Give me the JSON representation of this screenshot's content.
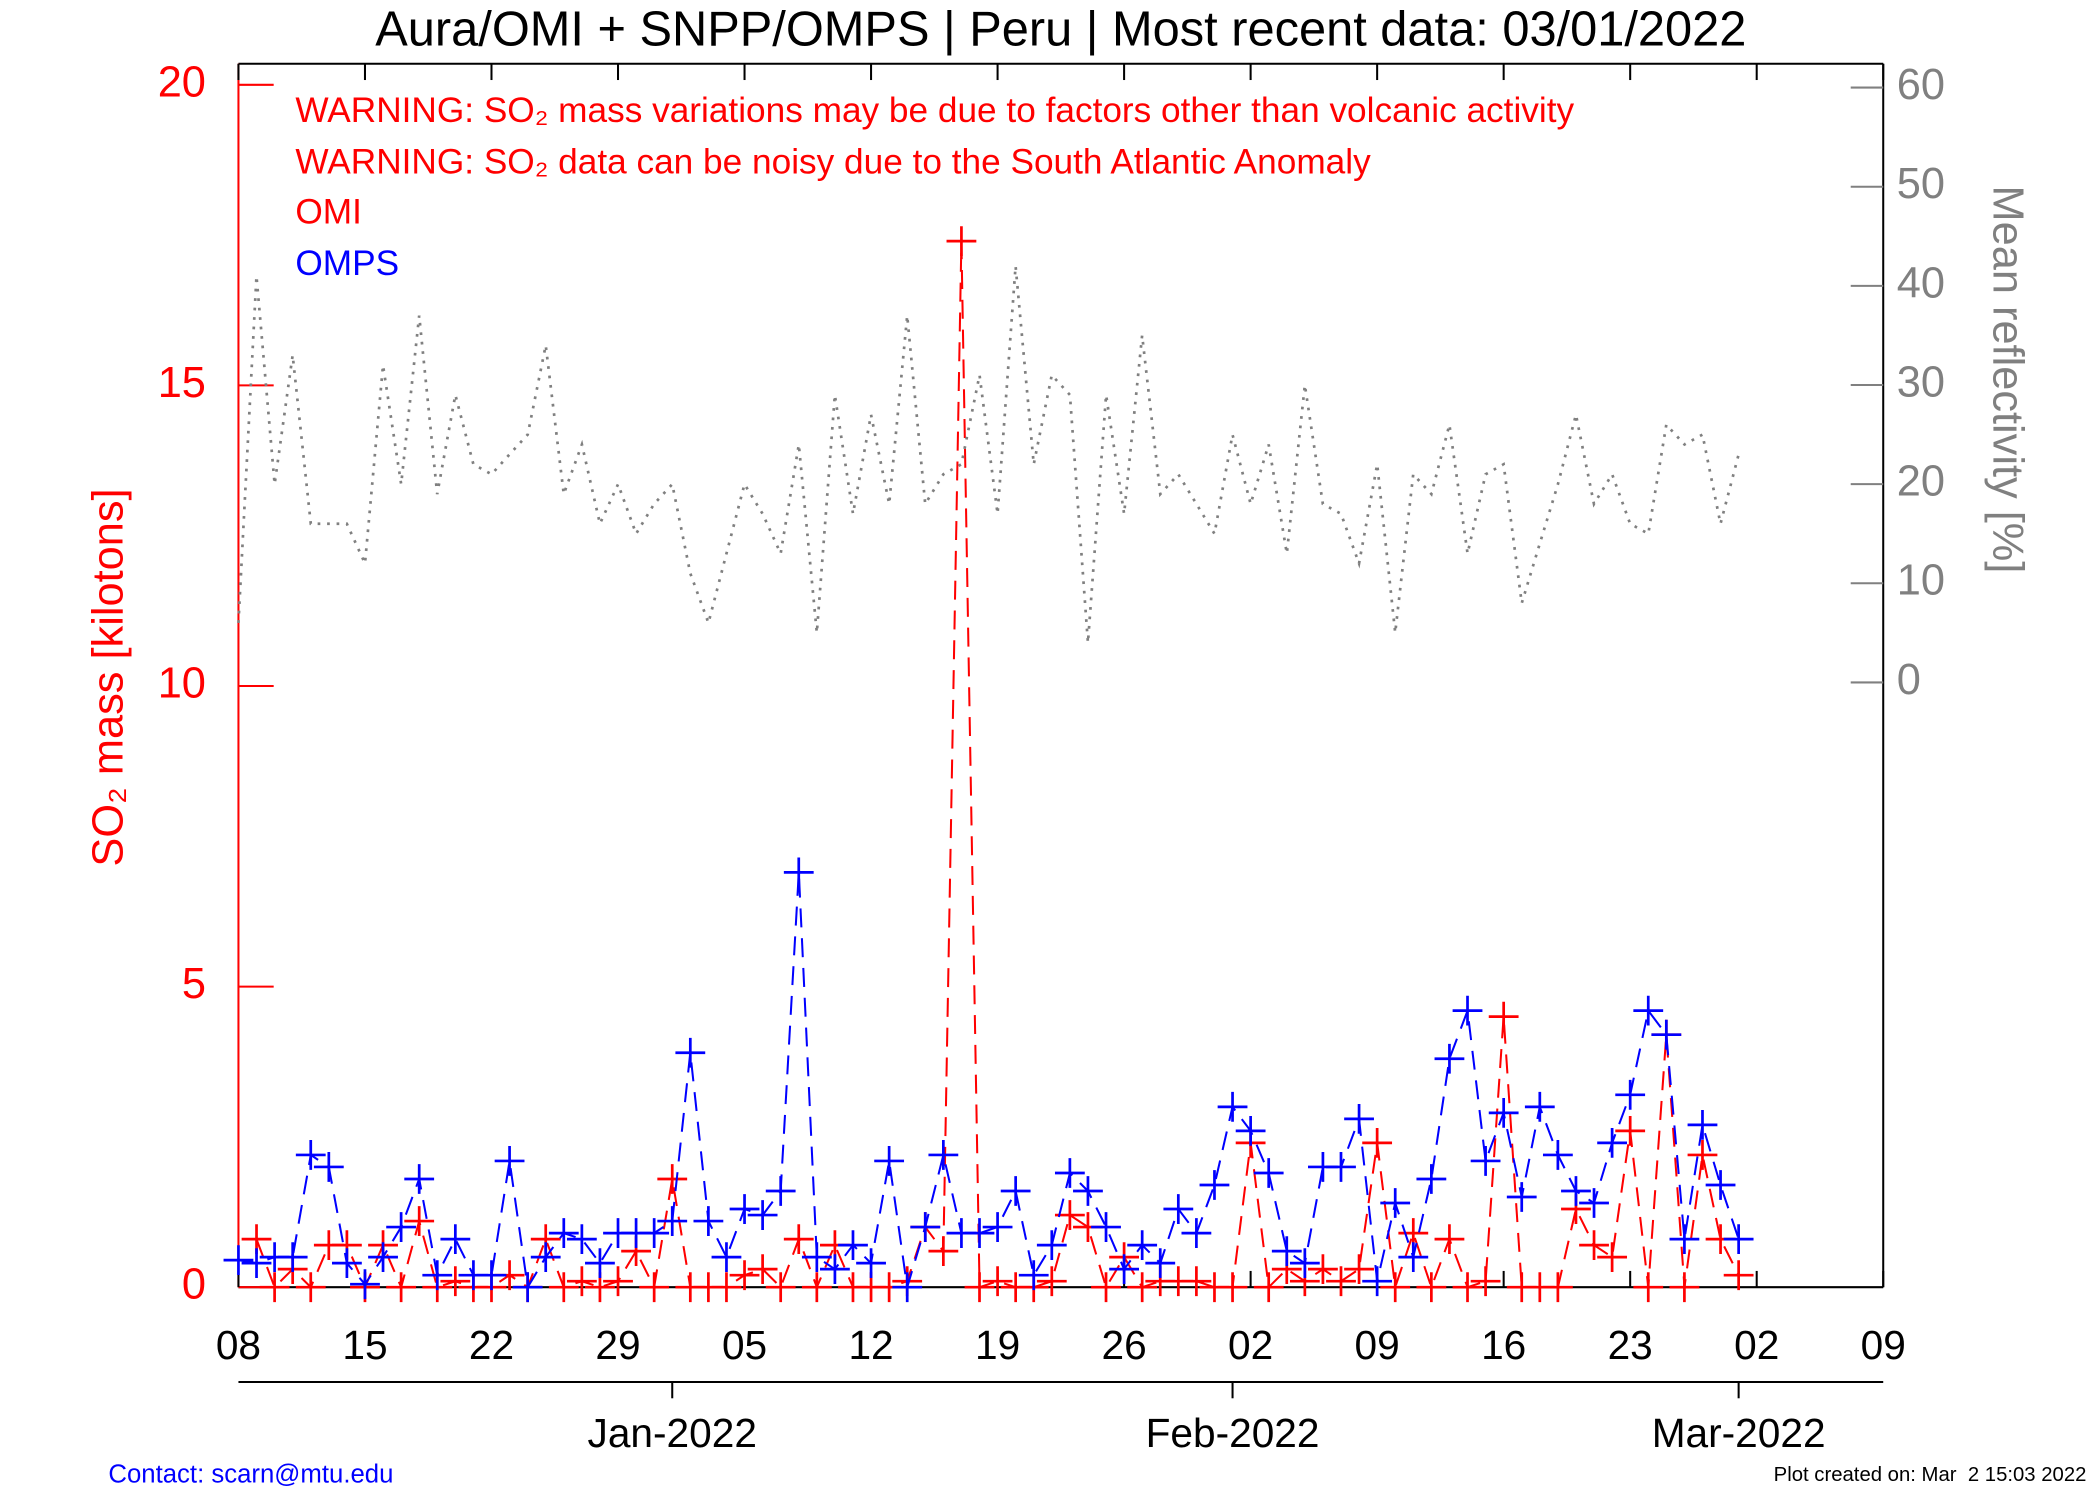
{
  "chart_data": {
    "type": "line",
    "title": "Aura/OMI + SNPP/OMPS | Peru | Most recent data: 03/01/2022",
    "y_label": "SO₂ mass [kilotons]",
    "y2_label": "Mean reflectivity [%]",
    "annotations": [
      "WARNING: SO₂ mass variations may be due to factors other than volcanic activity",
      "WARNING: SO₂ data can be noisy due to the South Atlantic Anomaly"
    ],
    "contact": "Contact: scarn@mtu.edu",
    "created": "Plot created on: Mar  2 15:03 2022",
    "x": [
      0,
      1,
      2,
      3,
      4,
      5,
      6,
      7,
      8,
      9,
      10,
      11,
      12,
      13,
      14,
      15,
      16,
      17,
      18,
      19,
      20,
      21,
      22,
      23,
      24,
      25,
      26,
      27,
      28,
      29,
      30,
      31,
      32,
      33,
      34,
      35,
      36,
      37,
      38,
      39,
      40,
      41,
      42,
      43,
      44,
      45,
      46,
      47,
      48,
      49,
      50,
      51,
      52,
      53,
      54,
      55,
      56,
      57,
      58,
      59,
      60,
      61,
      62,
      63,
      64,
      65,
      66,
      67,
      68,
      69,
      70,
      71,
      72,
      73,
      74,
      75,
      76,
      77,
      78,
      79,
      80,
      81,
      82,
      83
    ],
    "xlim": [
      0,
      91
    ],
    "xticks": [
      {
        "value": 0,
        "label": "08"
      },
      {
        "value": 7,
        "label": "15"
      },
      {
        "value": 14,
        "label": "22"
      },
      {
        "value": 21,
        "label": "29"
      },
      {
        "value": 28,
        "label": "05"
      },
      {
        "value": 35,
        "label": "12"
      },
      {
        "value": 42,
        "label": "19"
      },
      {
        "value": 49,
        "label": "26"
      },
      {
        "value": 56,
        "label": "02"
      },
      {
        "value": 63,
        "label": "09"
      },
      {
        "value": 70,
        "label": "16"
      },
      {
        "value": 77,
        "label": "23"
      },
      {
        "value": 84,
        "label": "02"
      },
      {
        "value": 91,
        "label": "09"
      }
    ],
    "month_ticks": [
      {
        "value": 24,
        "label": "Jan-2022"
      },
      {
        "value": 55,
        "label": "Feb-2022"
      },
      {
        "value": 83,
        "label": "Mar-2022"
      }
    ],
    "ylim": [
      0,
      20.35
    ],
    "yticks": [
      0,
      5,
      10,
      15,
      20
    ],
    "y2lim": [
      -61,
      62.4
    ],
    "y2ticks": [
      0,
      10,
      20,
      30,
      40,
      50,
      60
    ],
    "axis_color": "#ff0000",
    "y2_color": "#808080",
    "series": [
      {
        "name": "OMI",
        "color": "#ff0000",
        "linestyle": "dashed",
        "marker": "+",
        "values": [
          null,
          0.8,
          0,
          0.3,
          0,
          0.7,
          0.7,
          0,
          0.7,
          0,
          1.1,
          0,
          0.1,
          0,
          0,
          0.2,
          0,
          0.8,
          0,
          0.1,
          0,
          0.1,
          0.6,
          0,
          1.8,
          0,
          0,
          0,
          0.2,
          0.3,
          0,
          0.8,
          0,
          0.7,
          0,
          0,
          0,
          0.1,
          1.0,
          0.6,
          17.4,
          0,
          0.1,
          0,
          0,
          0.1,
          1.2,
          1.0,
          0,
          0.5,
          0,
          0.1,
          0.1,
          0.1,
          0,
          0,
          2.4,
          0,
          0.3,
          0.1,
          0.3,
          0.1,
          0.3,
          2.4,
          0,
          0.9,
          0,
          0.8,
          0,
          0.1,
          4.5,
          0,
          0,
          0,
          1.3,
          0.7,
          0.5,
          2.6,
          0,
          4.2,
          0,
          2.2,
          0.8,
          0.2
        ]
      },
      {
        "name": "OMPS",
        "color": "#0000ff",
        "linestyle": "dashed",
        "marker": "+",
        "values": [
          0.45,
          0.4,
          0.5,
          0.5,
          2.2,
          2.0,
          0.4,
          0.05,
          0.5,
          1.0,
          1.8,
          0.2,
          0.8,
          0.2,
          0.2,
          2.1,
          0,
          0.5,
          0.9,
          0.8,
          0.4,
          0.9,
          0.9,
          0.9,
          1.1,
          3.9,
          1.1,
          0.5,
          1.3,
          1.2,
          1.6,
          6.9,
          0.5,
          0.3,
          0.7,
          0.4,
          2.1,
          0,
          1.0,
          2.2,
          0.9,
          0.9,
          1.0,
          1.6,
          0.2,
          0.7,
          1.9,
          1.6,
          1.0,
          0.3,
          0.7,
          0.4,
          1.3,
          0.9,
          1.7,
          3.0,
          2.6,
          1.9,
          0.6,
          0.4,
          2.0,
          2.0,
          2.8,
          0.1,
          1.4,
          0.5,
          1.8,
          3.8,
          4.6,
          2.1,
          2.9,
          1.5,
          3.0,
          2.2,
          1.6,
          1.4,
          2.4,
          3.2,
          4.6,
          4.2,
          0.8,
          2.7,
          1.7,
          0.8
        ]
      },
      {
        "axis": "y2",
        "color": "#808080",
        "linestyle": "dotted",
        "values": [
          6,
          41,
          20,
          33,
          16,
          16,
          16,
          12,
          32,
          20,
          37,
          19,
          29,
          22,
          21,
          23,
          25,
          34,
          19,
          24,
          16,
          20,
          15,
          18,
          20,
          11,
          6,
          13,
          20,
          17,
          13,
          24,
          5,
          29,
          17,
          27,
          18,
          37,
          18,
          21,
          22,
          31,
          17,
          42,
          22,
          31,
          29,
          4,
          29,
          17,
          35,
          19,
          21,
          18,
          15,
          25,
          18,
          24,
          13,
          30,
          18,
          17,
          12,
          22,
          5,
          21,
          19,
          26,
          13,
          21,
          22,
          8,
          14,
          20,
          27,
          18,
          21,
          16,
          15,
          26,
          24,
          25,
          16,
          23
        ]
      }
    ]
  }
}
